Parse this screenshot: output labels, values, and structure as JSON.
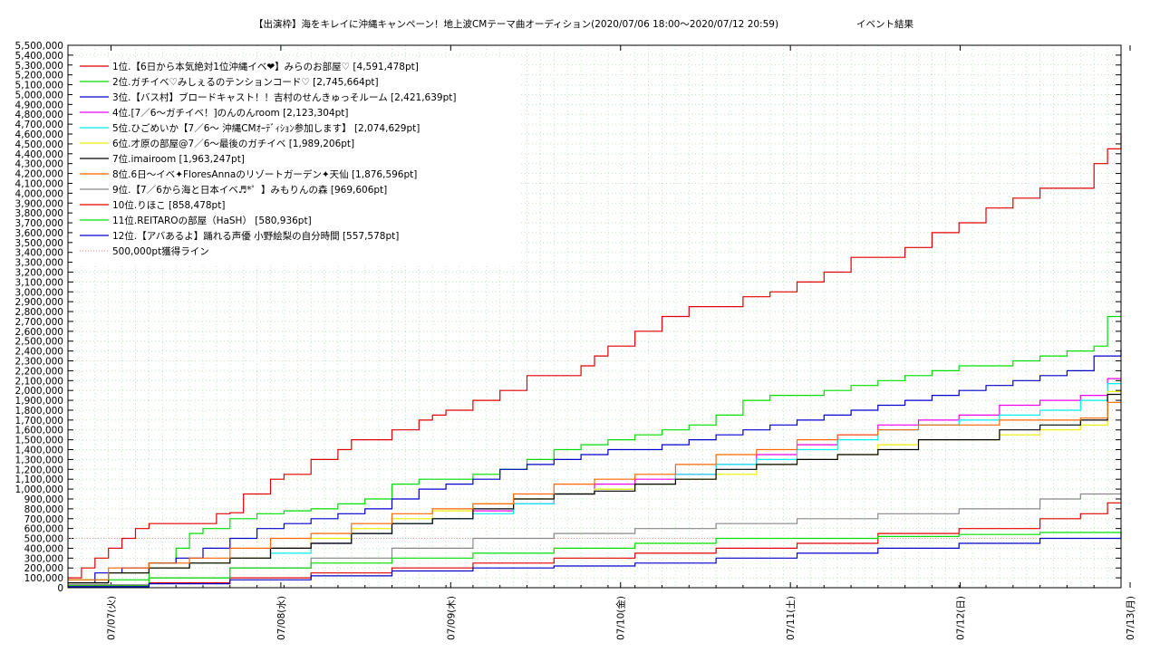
{
  "chart_data": {
    "type": "line",
    "title": "【出演枠】海をキレイに沖縄キャンペーン！地上波CMテーマ曲オーディション(2020/07/06 18:00〜2020/07/12 20:59)",
    "subtitle": "イベント結果",
    "ylim": [
      0,
      5500000
    ],
    "y_ticks": [
      "0",
      "100,000",
      "200,000",
      "300,000",
      "400,000",
      "500,000",
      "600,000",
      "700,000",
      "800,000",
      "900,000",
      "1,000,000",
      "1,100,000",
      "1,200,000",
      "1,300,000",
      "1,400,000",
      "1,500,000",
      "1,600,000",
      "1,700,000",
      "1,800,000",
      "1,900,000",
      "2,000,000",
      "2,100,000",
      "2,200,000",
      "2,300,000",
      "2,400,000",
      "2,500,000",
      "2,600,000",
      "2,700,000",
      "2,800,000",
      "2,900,000",
      "3,000,000",
      "3,100,000",
      "3,200,000",
      "3,300,000",
      "3,400,000",
      "3,500,000",
      "3,600,000",
      "3,700,000",
      "3,800,000",
      "3,900,000",
      "4,000,000",
      "4,100,000",
      "4,200,000",
      "4,300,000",
      "4,400,000",
      "4,500,000",
      "4,600,000",
      "4,700,000",
      "4,800,000",
      "4,900,000",
      "5,000,000",
      "5,100,000",
      "5,200,000",
      "5,300,000",
      "5,400,000",
      "5,500,000"
    ],
    "x_ticks": [
      "07/07(火)",
      "07/08(水)",
      "07/09(木)",
      "07/10(金)",
      "07/11(土)",
      "07/12(日)",
      "07/13(月)"
    ],
    "x_unit_note_hours": "x values are hours after 2020/07/06 18:00",
    "xlim_hours": [
      0,
      78
    ],
    "grid": true,
    "legend": "top-left",
    "threshold": {
      "name": "500,000pt獲得ライン",
      "value": 500000,
      "color": "#ff9999"
    },
    "series": [
      {
        "name": "1位.【6日から本気絶対1位沖縄イベ❤】みらのお部屋♡ [4,591,478pt]",
        "color": "#e00000",
        "x": [
          0,
          1,
          2,
          3,
          4,
          5,
          6,
          7,
          9,
          11,
          12,
          13,
          14,
          15,
          16,
          18,
          20,
          21,
          22,
          24,
          26,
          27,
          28,
          30,
          32,
          34,
          36,
          38,
          39,
          40,
          42,
          44,
          46,
          48,
          50,
          52,
          54,
          56,
          58,
          60,
          62,
          64,
          66,
          68,
          70,
          72,
          74,
          76,
          77,
          78
        ],
        "y": [
          100000,
          200000,
          300000,
          400000,
          500000,
          600000,
          650000,
          650000,
          650000,
          750000,
          760000,
          950000,
          950000,
          1100000,
          1150000,
          1300000,
          1400000,
          1500000,
          1500000,
          1600000,
          1700000,
          1750000,
          1800000,
          1900000,
          2000000,
          2150000,
          2150000,
          2250000,
          2350000,
          2450000,
          2600000,
          2750000,
          2850000,
          2850000,
          2950000,
          3000000,
          3100000,
          3200000,
          3350000,
          3350000,
          3450000,
          3600000,
          3700000,
          3850000,
          3950000,
          4050000,
          4050000,
          4300000,
          4450000,
          4600000
        ]
      },
      {
        "name": "2位.ガチイベ♡みしぇるのテンションコード♡ [2,745,664pt]",
        "color": "#00dd00",
        "x": [
          0,
          6,
          8,
          9,
          10,
          12,
          14,
          16,
          18,
          20,
          22,
          24,
          26,
          28,
          30,
          32,
          34,
          36,
          38,
          40,
          42,
          44,
          46,
          48,
          50,
          52,
          54,
          56,
          58,
          60,
          62,
          64,
          66,
          68,
          70,
          72,
          74,
          76,
          77,
          78
        ],
        "y": [
          80000,
          250000,
          400000,
          550000,
          600000,
          700000,
          750000,
          780000,
          800000,
          850000,
          900000,
          1050000,
          1100000,
          1100000,
          1150000,
          1200000,
          1300000,
          1400000,
          1450000,
          1500000,
          1550000,
          1600000,
          1650000,
          1750000,
          1900000,
          1950000,
          1950000,
          2000000,
          2050000,
          2100000,
          2150000,
          2200000,
          2250000,
          2250000,
          2300000,
          2350000,
          2400000,
          2450000,
          2750000,
          2750000
        ]
      },
      {
        "name": "3位.【バス村】ブロードキャスト！！吉村のせんきゅっそルーム [2,421,639pt]",
        "color": "#0000cc",
        "x": [
          0,
          2,
          4,
          6,
          8,
          10,
          12,
          14,
          16,
          18,
          20,
          22,
          24,
          26,
          28,
          30,
          32,
          34,
          36,
          38,
          40,
          42,
          44,
          46,
          48,
          50,
          52,
          54,
          56,
          58,
          60,
          62,
          64,
          66,
          68,
          70,
          72,
          74,
          76,
          78
        ],
        "y": [
          50000,
          150000,
          200000,
          250000,
          300000,
          400000,
          500000,
          600000,
          650000,
          700000,
          750000,
          800000,
          900000,
          1000000,
          1050000,
          1100000,
          1200000,
          1250000,
          1300000,
          1350000,
          1400000,
          1400000,
          1450000,
          1500000,
          1550000,
          1600000,
          1650000,
          1700000,
          1750000,
          1800000,
          1850000,
          1900000,
          1950000,
          2000000,
          2050000,
          2100000,
          2150000,
          2200000,
          2350000,
          2420000
        ]
      },
      {
        "name": "4位.[7／6〜ガチイベ！]のんのんroom [2,123,304pt]",
        "color": "#ee00ee",
        "x": [
          0,
          3,
          6,
          9,
          12,
          15,
          18,
          21,
          24,
          27,
          30,
          33,
          36,
          39,
          42,
          45,
          48,
          51,
          54,
          57,
          60,
          63,
          66,
          69,
          72,
          75,
          77,
          78
        ],
        "y": [
          50000,
          150000,
          200000,
          250000,
          300000,
          400000,
          450000,
          550000,
          650000,
          700000,
          780000,
          850000,
          950000,
          1050000,
          1100000,
          1150000,
          1250000,
          1350000,
          1450000,
          1550000,
          1650000,
          1700000,
          1750000,
          1850000,
          1900000,
          1950000,
          2120000,
          2120000
        ]
      },
      {
        "name": "5位.ひごめいか【7／6〜 沖縄CMｵｰﾃﾞｨｼｮﾝ参加します】 [2,074,629pt]",
        "color": "#00eeee",
        "x": [
          0,
          3,
          6,
          9,
          12,
          15,
          18,
          21,
          24,
          27,
          30,
          33,
          36,
          39,
          42,
          45,
          48,
          51,
          54,
          57,
          60,
          63,
          66,
          69,
          72,
          75,
          77,
          78
        ],
        "y": [
          50000,
          150000,
          200000,
          250000,
          300000,
          350000,
          450000,
          550000,
          650000,
          700000,
          750000,
          850000,
          950000,
          1000000,
          1050000,
          1150000,
          1250000,
          1300000,
          1400000,
          1500000,
          1600000,
          1650000,
          1700000,
          1750000,
          1800000,
          1900000,
          2070000,
          2070000
        ]
      },
      {
        "name": "6位.才原の部屋@7／6〜最後のガチイベ [1,989,206pt]",
        "color": "#eeee00",
        "x": [
          0,
          3,
          6,
          9,
          12,
          15,
          18,
          21,
          24,
          27,
          30,
          33,
          36,
          39,
          42,
          45,
          48,
          51,
          54,
          57,
          60,
          63,
          66,
          69,
          72,
          75,
          77,
          78
        ],
        "y": [
          50000,
          150000,
          200000,
          250000,
          300000,
          400000,
          500000,
          600000,
          700000,
          780000,
          850000,
          900000,
          950000,
          1000000,
          1050000,
          1100000,
          1150000,
          1250000,
          1300000,
          1350000,
          1450000,
          1500000,
          1500000,
          1550000,
          1600000,
          1650000,
          1990000,
          1990000
        ]
      },
      {
        "name": "7位.imairoom [1,963,247pt]",
        "color": "#000000",
        "x": [
          0,
          3,
          6,
          9,
          12,
          15,
          18,
          21,
          24,
          27,
          30,
          33,
          36,
          39,
          42,
          45,
          48,
          51,
          54,
          57,
          60,
          63,
          66,
          69,
          72,
          75,
          77,
          78
        ],
        "y": [
          50000,
          150000,
          200000,
          250000,
          300000,
          400000,
          450000,
          550000,
          650000,
          700000,
          800000,
          900000,
          950000,
          980000,
          1050000,
          1100000,
          1200000,
          1250000,
          1300000,
          1350000,
          1400000,
          1500000,
          1500000,
          1600000,
          1650000,
          1700000,
          1960000,
          1960000
        ]
      },
      {
        "name": "8位.6日〜イベ✦FloresAnnaのリゾートガーデン✦天仙 [1,876,596pt]",
        "color": "#ff6600",
        "x": [
          0,
          3,
          6,
          9,
          12,
          15,
          18,
          21,
          24,
          27,
          30,
          33,
          36,
          39,
          42,
          45,
          48,
          51,
          54,
          57,
          60,
          63,
          66,
          69,
          72,
          75,
          77,
          78
        ],
        "y": [
          80000,
          200000,
          250000,
          300000,
          400000,
          500000,
          550000,
          650000,
          750000,
          800000,
          850000,
          950000,
          1050000,
          1100000,
          1150000,
          1250000,
          1350000,
          1400000,
          1500000,
          1550000,
          1600000,
          1650000,
          1650000,
          1700000,
          1700000,
          1720000,
          1880000,
          1880000
        ]
      },
      {
        "name": "9位.【7／6から海と日本イベ♬*゜】みもりんの森 [969,606pt]",
        "color": "#888888",
        "x": [
          0,
          6,
          12,
          18,
          24,
          30,
          36,
          42,
          48,
          54,
          60,
          66,
          72,
          75,
          78
        ],
        "y": [
          30000,
          100000,
          200000,
          300000,
          400000,
          500000,
          550000,
          600000,
          650000,
          700000,
          750000,
          800000,
          900000,
          950000,
          970000
        ]
      },
      {
        "name": "10位.りほこ [858,478pt]",
        "color": "#e00000",
        "x": [
          0,
          6,
          12,
          18,
          24,
          30,
          36,
          42,
          48,
          54,
          60,
          66,
          72,
          75,
          77,
          78
        ],
        "y": [
          20000,
          50000,
          100000,
          150000,
          200000,
          250000,
          300000,
          350000,
          400000,
          450000,
          550000,
          600000,
          700000,
          750000,
          860000,
          860000
        ]
      },
      {
        "name": "11位.REITAROの部屋（HaSH） [580,936pt]",
        "color": "#00dd00",
        "x": [
          0,
          6,
          12,
          18,
          24,
          30,
          36,
          42,
          48,
          54,
          60,
          66,
          72,
          78
        ],
        "y": [
          20000,
          100000,
          200000,
          250000,
          300000,
          350000,
          400000,
          450000,
          500000,
          500000,
          520000,
          540000,
          560000,
          580000
        ]
      },
      {
        "name": "12位.【アバあるよ】踊れる声優 小野絵梨の自分時間 [557,578pt]",
        "color": "#0000cc",
        "x": [
          0,
          6,
          12,
          18,
          24,
          30,
          36,
          42,
          48,
          54,
          60,
          66,
          72,
          78
        ],
        "y": [
          10000,
          40000,
          80000,
          120000,
          170000,
          200000,
          220000,
          250000,
          300000,
          350000,
          400000,
          450000,
          500000,
          558000
        ]
      }
    ]
  }
}
